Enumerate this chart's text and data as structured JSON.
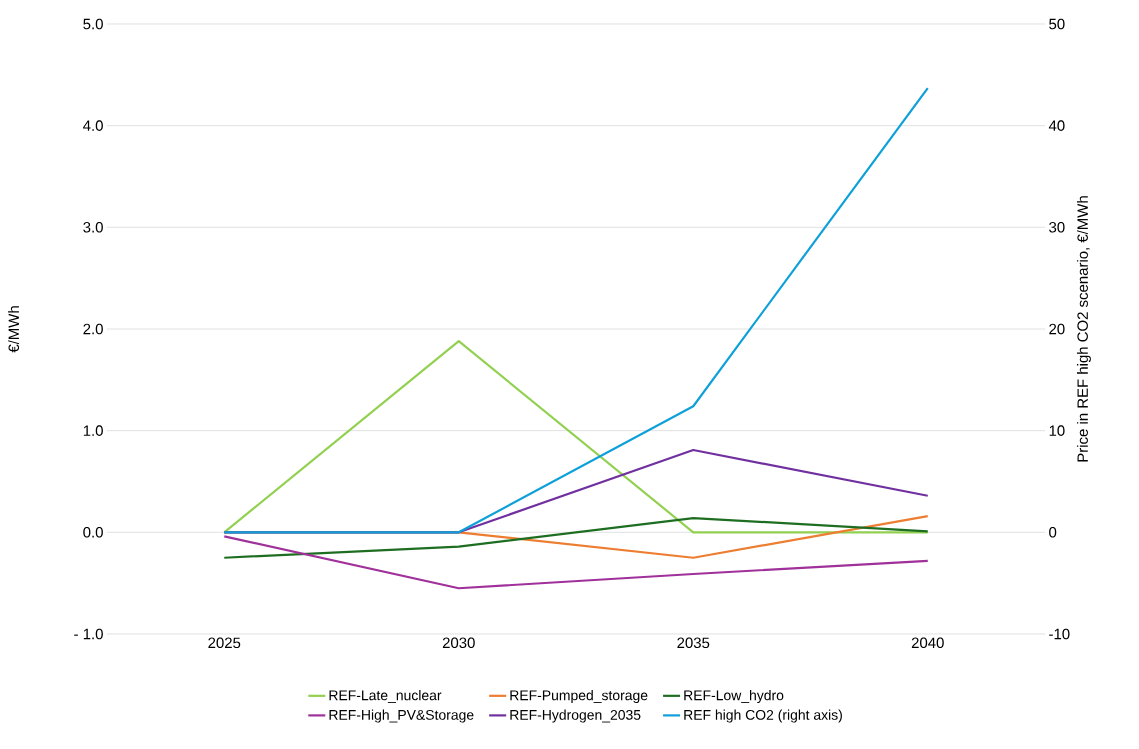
{
  "chart_data": {
    "type": "line",
    "ylabel": "€/MWh",
    "y2label": "Price in REF high CO2 scenario, €/MWh",
    "categories": [
      "2025",
      "2030",
      "2035",
      "2040"
    ],
    "series": [
      {
        "name": "REF-Late_nuclear",
        "color": "#92d050",
        "values": [
          0,
          1.88,
          0,
          0
        ]
      },
      {
        "name": "REF-Pumped_storage",
        "color": "#ed7d31",
        "values": [
          0,
          0,
          -0.25,
          0.16
        ]
      },
      {
        "name": "REF-Low_hydro",
        "color": "#1e6e22",
        "values": [
          -0.25,
          -0.14,
          0.14,
          0.01
        ]
      },
      {
        "name": "REF-High_PV&Storage",
        "color": "#a0309a",
        "values": [
          -0.04,
          -0.55,
          -0.41,
          -0.28
        ]
      },
      {
        "name": "REF-Hydrogen_2035",
        "color": "#7030a0",
        "values": [
          0,
          0,
          0.81,
          0.36
        ]
      },
      {
        "name": "REF high CO2 (right axis)",
        "color": "#0ea0d8",
        "axis": "y2",
        "values": [
          0,
          0,
          12.4,
          43.7
        ]
      }
    ],
    "ylim": [
      -1,
      5
    ],
    "yticks": [
      {
        "value": -1,
        "label": "- 1.0"
      },
      {
        "value": 0,
        "label": "0.0"
      },
      {
        "value": 1,
        "label": "1.0"
      },
      {
        "value": 2,
        "label": "2.0"
      },
      {
        "value": 3,
        "label": "3.0"
      },
      {
        "value": 4,
        "label": "4.0"
      },
      {
        "value": 5,
        "label": "5.0"
      }
    ],
    "y2lim": [
      -10,
      50
    ],
    "y2ticks": [
      -10,
      0,
      10,
      20,
      30,
      40,
      50
    ],
    "grid": "y",
    "legend": "bottom",
    "marker": "none",
    "line_style": "solid"
  }
}
